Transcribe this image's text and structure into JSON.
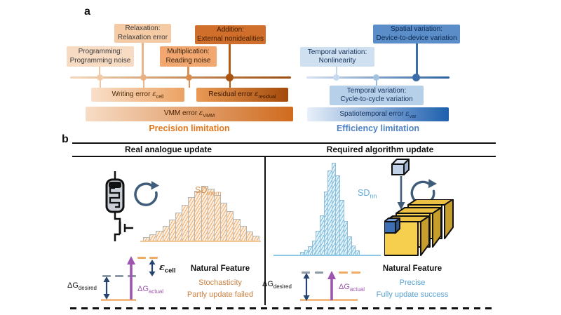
{
  "panel_a": {
    "label": "a",
    "boxes": {
      "programming": {
        "line1": "Programming:",
        "line2": "Programming noise"
      },
      "relaxation": {
        "line1": "Relaxation:",
        "line2": "Relaxation error"
      },
      "multiplication": {
        "line1": "Multiplication:",
        "line2": "Reading noise"
      },
      "addition": {
        "line1": "Addition:",
        "line2": "External nonidealities"
      },
      "temporal_nonlinearity": {
        "line1": "Temporal variation:",
        "line2": "Nonlinearity"
      },
      "spatial": {
        "line1": "Spatial variation:",
        "line2": "Device-to-device variation"
      },
      "cycle_to_cycle": {
        "line1": "Temporal variation:",
        "line2": "Cycle-to-cycle variation"
      }
    },
    "bars": {
      "writing_error": {
        "text": "Writing error ",
        "sym": "ε",
        "sub": "cell"
      },
      "residual_error": {
        "text": "Residual error ",
        "sym": "ε",
        "sub": "residual"
      },
      "vmm_error": {
        "text": "VMM error ",
        "sym": "ε",
        "sub": "VMM"
      },
      "spatiotemporal_error": {
        "text": "Spatiotemporal error ",
        "sym": "ε",
        "sub": "var"
      }
    },
    "captions": {
      "precision": "Precision limitation",
      "efficiency": "Efficiency limitation"
    }
  },
  "panel_b": {
    "label": "b",
    "headers": {
      "left": "Real analogue update",
      "right": "Required algorithm update"
    },
    "left": {
      "sd_label": {
        "text": "SD",
        "sub": "mem"
      },
      "dg_desired": {
        "text": "ΔG",
        "sub": "desired"
      },
      "dg_actual": {
        "text": "ΔG",
        "sub": "actual"
      },
      "eps_cell": {
        "sym": "ε",
        "sub": "cell"
      },
      "feature_title": "Natural Feature",
      "feature_lines": [
        "Stochasticity",
        "Partly update failed"
      ]
    },
    "right": {
      "sd_label": {
        "text": "SD",
        "sub": "nn"
      },
      "dg_desired": {
        "text": "ΔG",
        "sub": "desired"
      },
      "dg_actual": {
        "text": "ΔG",
        "sub": "actual"
      },
      "feature_title": "Natural Feature",
      "feature_lines": [
        "Precise",
        "Fully update success"
      ]
    }
  },
  "colors": {
    "precision_caption": "#e2761b",
    "efficiency_caption": "#4e82c4",
    "orange_feature_text": "#cd8040",
    "blue_feature_text": "#58a0d0",
    "purple_arrow": "#9e55af",
    "navy_arrow": "#26456e",
    "orange_dash": "#f0ac64",
    "gray_dash": "#8d9aa6"
  },
  "chart_data": [
    {
      "type": "bar",
      "name": "sd_mem",
      "label": "SD_mem",
      "values": [
        5,
        9,
        14,
        21,
        30,
        40,
        51,
        62,
        71,
        78,
        74,
        65,
        54,
        42,
        31,
        21,
        13,
        7
      ],
      "unit": "relative-height-px"
    },
    {
      "type": "bar",
      "name": "sd_nn",
      "label": "SD_nn",
      "values": [
        4,
        7,
        12,
        20,
        34,
        56,
        90,
        120,
        131,
        113,
        78,
        48,
        26,
        13,
        6
      ],
      "unit": "relative-height-px"
    }
  ]
}
